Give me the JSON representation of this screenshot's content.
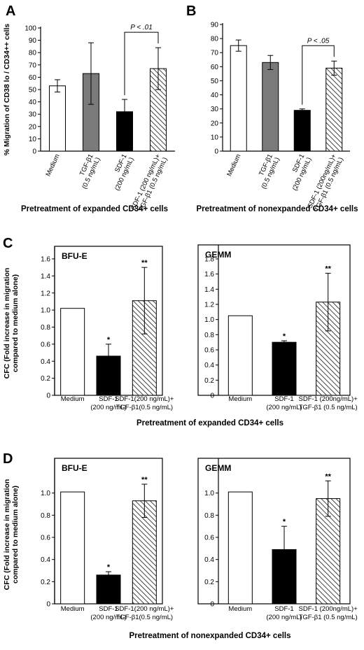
{
  "patterns": {
    "hatch": "#555555",
    "white": "#ffffff",
    "gray": "#7a7a7a",
    "black": "#000000"
  },
  "chart_data": [
    {
      "panel": "A",
      "type": "bar",
      "categories": [
        "Medium",
        "TGF-β1 (0.5 ng/mL)",
        "SDF-1 (200 ng/mL)",
        "SDF-1 (200 ng/mL)+ TGF-β1 (0.5 ng/mL)"
      ],
      "values": [
        53,
        63,
        32,
        67
      ],
      "errors": [
        5,
        25,
        10,
        17
      ],
      "fills": [
        "white",
        "gray",
        "black",
        "hatch"
      ],
      "ylabel": "% Migration of CD38 lo / CD34++ cells",
      "xlabel": "Pretreatment of expanded CD34+ cells",
      "ylim": [
        0,
        100
      ],
      "yticks": [
        0,
        10,
        20,
        30,
        40,
        50,
        60,
        70,
        80,
        90,
        100
      ],
      "bracket": {
        "from": 2,
        "to": 3,
        "label": "P < .01"
      },
      "inset_label": "",
      "stars": [
        "",
        "",
        "",
        ""
      ]
    },
    {
      "panel": "B",
      "type": "bar",
      "categories": [
        "Medium",
        "TGF-β1 (0.5 ng/mL)",
        "SDF-1 (200 ng/mL)",
        "SDF-1 (200ng/mL)+ TGF-β1 (0.5 ng/mL)"
      ],
      "values": [
        75,
        63,
        29,
        59
      ],
      "errors": [
        4,
        5,
        1,
        5
      ],
      "fills": [
        "white",
        "gray",
        "black",
        "hatch"
      ],
      "ylabel": "",
      "xlabel": "Pretreatment of nonexpanded CD34+ cells",
      "ylim": [
        0,
        90
      ],
      "yticks": [
        0,
        10,
        20,
        30,
        40,
        50,
        60,
        70,
        80,
        90
      ],
      "bracket": {
        "from": 2,
        "to": 3,
        "label": "P < .05"
      },
      "inset_label": "",
      "stars": [
        "",
        "",
        "",
        ""
      ]
    },
    {
      "panel": "C",
      "type": "bar",
      "categories": [
        "Medium",
        "SDF-1 (200 ng/mL)",
        "SDF-1(200 ng/mL)+ TGF-β1(0.5 ng/mL)"
      ],
      "values": [
        1.02,
        0.46,
        1.11
      ],
      "errors": [
        0,
        0.14,
        0.39
      ],
      "fills": [
        "white",
        "black",
        "hatch"
      ],
      "ylabel": "CFC (Fold increase in migration compared to medium alone)",
      "xlabel": "Pretreatment of expanded CD34+ cells",
      "ylim": [
        0,
        1.6
      ],
      "yticks": [
        0,
        0.2,
        0.4,
        0.6,
        0.8,
        1.0,
        1.2,
        1.4,
        1.6
      ],
      "inset_label": "BFU-E",
      "stars": [
        "",
        "*",
        "**"
      ]
    },
    {
      "panel": "",
      "type": "bar",
      "categories": [
        "Medium",
        "SDF-1 (200 ng/mL)",
        "SDF-1 (200ng/mL)+ TGF-β1 (0.5 ng/mL)"
      ],
      "values": [
        1.05,
        0.7,
        1.23
      ],
      "errors": [
        0,
        0.02,
        0.38
      ],
      "fills": [
        "white",
        "black",
        "hatch"
      ],
      "ylabel": "",
      "xlabel": "",
      "ylim": [
        0,
        1.8
      ],
      "yticks": [
        0,
        0.2,
        0.4,
        0.6,
        0.8,
        1.0,
        1.2,
        1.4,
        1.6,
        1.8
      ],
      "inset_label": "GEMM",
      "stars": [
        "",
        "*",
        "**"
      ]
    },
    {
      "panel": "D",
      "type": "bar",
      "categories": [
        "Medium",
        "SDF-1 (200 ng/mL)",
        "SDF-1(200 ng/mL)+ TGF-β1(0.5 ng/mL)"
      ],
      "values": [
        1.01,
        0.26,
        0.93
      ],
      "errors": [
        0,
        0.03,
        0.15
      ],
      "fills": [
        "white",
        "black",
        "hatch"
      ],
      "ylabel": "CFC (Fold increase in migration compared to medium alone)",
      "xlabel": "Pretreatment of nonexpanded CD34+ cells",
      "ylim": [
        0,
        1.2
      ],
      "yticks": [
        0,
        0.2,
        0.4,
        0.6,
        0.8,
        1.0
      ],
      "inset_label": "BFU-E",
      "stars": [
        "",
        "*",
        "**"
      ]
    },
    {
      "panel": "",
      "type": "bar",
      "categories": [
        "Medium",
        "SDF-1 (200 ng/mL)",
        "SDF-1 (200ng/mL)+ TGF-β1 (0.5 ng/mL)"
      ],
      "values": [
        1.01,
        0.49,
        0.95
      ],
      "errors": [
        0,
        0.21,
        0.16
      ],
      "fills": [
        "white",
        "black",
        "hatch"
      ],
      "ylabel": "",
      "xlabel": "",
      "ylim": [
        0,
        1.2
      ],
      "yticks": [
        0,
        0.2,
        0.4,
        0.6,
        0.8,
        1.0
      ],
      "inset_label": "GEMM",
      "stars": [
        "",
        "*",
        "**"
      ]
    }
  ]
}
